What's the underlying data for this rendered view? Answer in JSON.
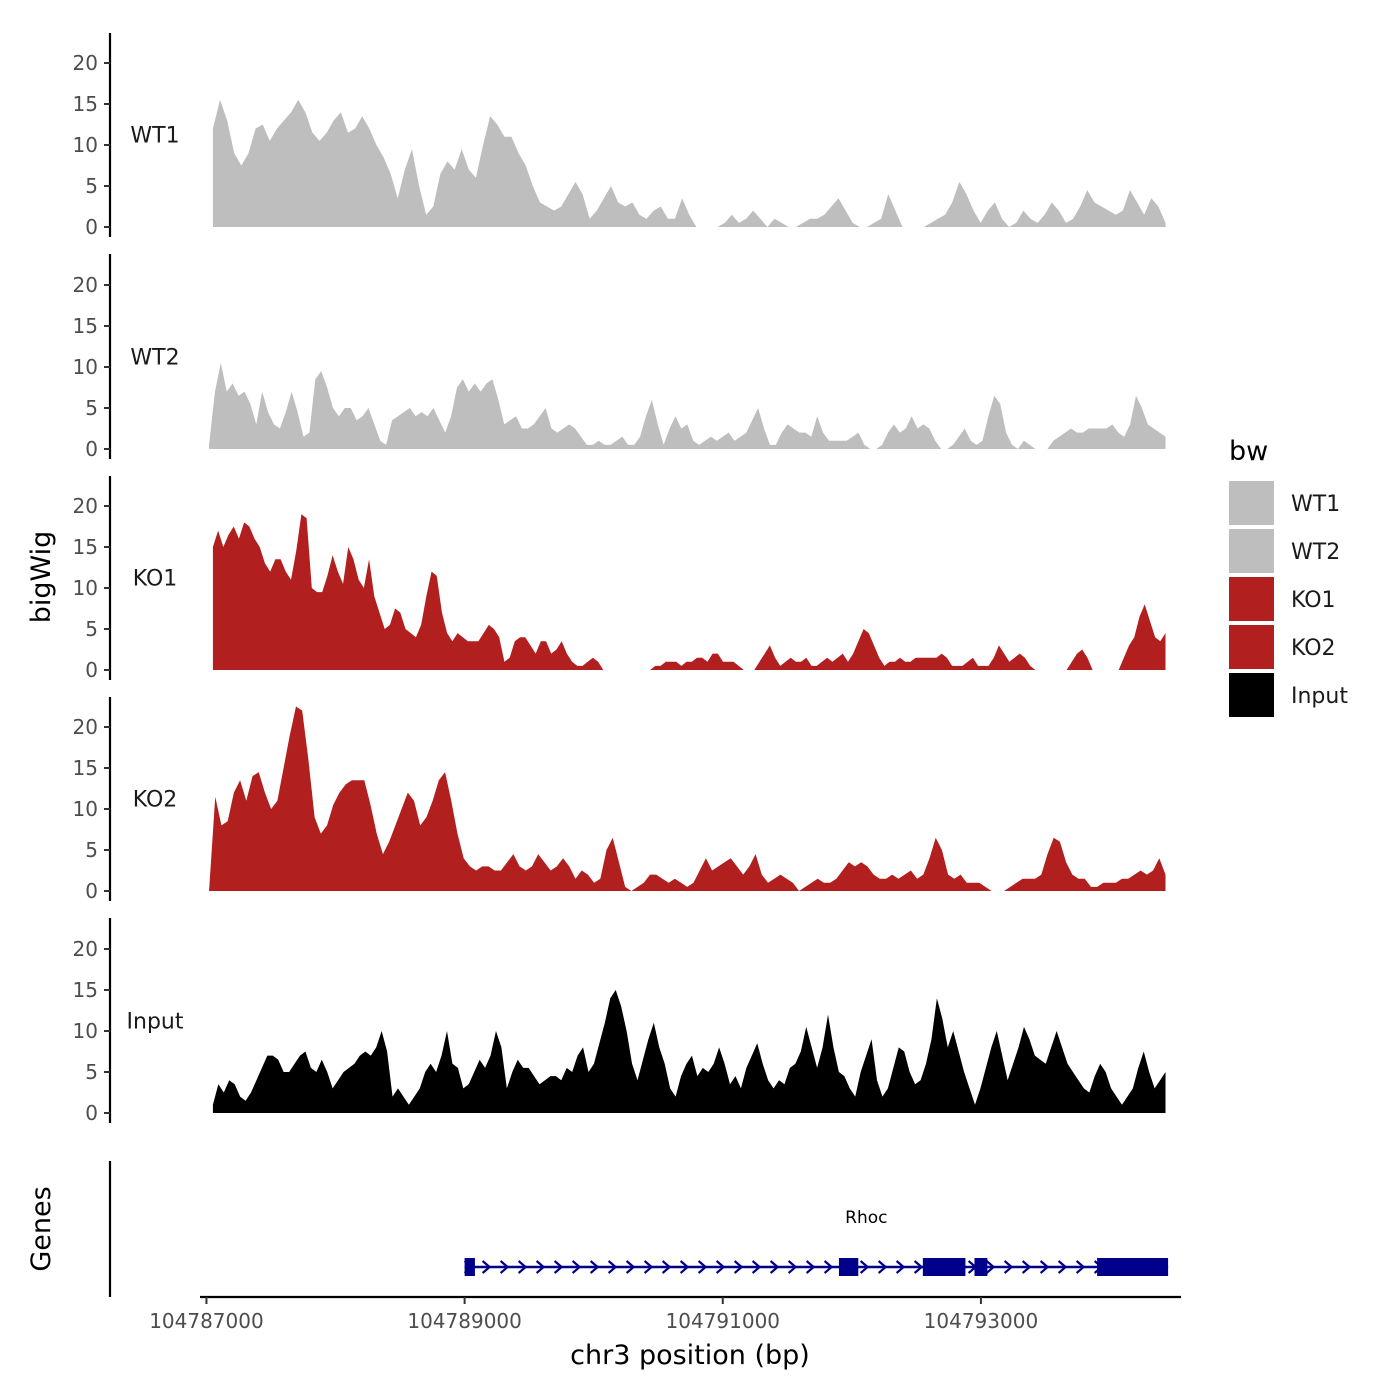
{
  "chart_data": {
    "type": "area",
    "xlabel": "chr3 position (bp)",
    "ylabel": "bigWig",
    "gene_track_label": "Genes",
    "xlim": [
      104786950,
      104794550
    ],
    "x_ticks": [
      104787000,
      104789000,
      104791000,
      104793000
    ],
    "x_tick_labels": [
      "104787000",
      "104789000",
      "104791000",
      "104793000"
    ],
    "ylim": [
      0,
      24
    ],
    "y_ticks": [
      0,
      5,
      10,
      15,
      20
    ],
    "y_tick_labels": [
      "0",
      "5",
      "10",
      "15",
      "20"
    ],
    "legend": {
      "title": "bw",
      "position": "right",
      "entries": [
        {
          "label": "WT1",
          "color": "#BEBEBE"
        },
        {
          "label": "WT2",
          "color": "#BEBEBE"
        },
        {
          "label": "KO1",
          "color": "#B21F1F"
        },
        {
          "label": "KO2",
          "color": "#B21F1F"
        },
        {
          "label": "Input",
          "color": "#000000"
        }
      ]
    },
    "tracks": [
      {
        "name": "WT1",
        "color": "#BEBEBE",
        "x_start": 104787050,
        "x_end": 104794430,
        "values": [
          12,
          15.5,
          13,
          9,
          7.5,
          9,
          12,
          12.5,
          10.5,
          12,
          13,
          14,
          15.5,
          14,
          11.5,
          10.5,
          11.5,
          13,
          14,
          11.5,
          12,
          13.5,
          12,
          10,
          8.5,
          6.5,
          3.5,
          7,
          9.5,
          5,
          1.5,
          2.5,
          6.5,
          8,
          7,
          9.5,
          7,
          6,
          10,
          13.5,
          12.5,
          11,
          11,
          9,
          7.5,
          5,
          3,
          2.5,
          2,
          2.5,
          4,
          5.5,
          4,
          1,
          2,
          3.5,
          5,
          3,
          2.5,
          3,
          1.5,
          1,
          2,
          2.5,
          1,
          1,
          3.5,
          1.5,
          0,
          0,
          0,
          0,
          0.5,
          1.5,
          0.5,
          1,
          2,
          1,
          0,
          1,
          0.5,
          0,
          0,
          0.5,
          1,
          1,
          1.5,
          2.5,
          3.5,
          2,
          0.5,
          0,
          0,
          0.5,
          1,
          4,
          2,
          0,
          0,
          0,
          0,
          0.5,
          1,
          1.5,
          3,
          5.5,
          4,
          2,
          0.5,
          2,
          3,
          1,
          0,
          0.5,
          2,
          1,
          0.5,
          1.5,
          3,
          2,
          0.5,
          1,
          2.5,
          4.5,
          3,
          2.5,
          2,
          1.5,
          2,
          4.5,
          3,
          1.5,
          3.5,
          2.5,
          0.5
        ]
      },
      {
        "name": "WT2",
        "color": "#BEBEBE",
        "x_start": 104787020,
        "x_end": 104794430,
        "values": [
          0.5,
          7,
          10.5,
          7,
          8,
          6.5,
          7,
          5.5,
          3,
          7,
          4.5,
          3,
          2.5,
          4.5,
          7,
          4.5,
          1.5,
          2,
          8.5,
          9.5,
          7.5,
          5,
          4,
          5,
          5,
          3.5,
          4,
          5,
          3,
          1,
          0.5,
          3.5,
          4,
          4.5,
          5,
          4,
          4.5,
          4,
          5,
          3.5,
          2,
          4,
          7.5,
          8.5,
          7,
          8,
          7,
          8,
          8.5,
          6,
          3,
          3.5,
          4,
          2.5,
          2.5,
          3,
          4,
          5,
          2.5,
          2,
          2.5,
          3,
          2.5,
          1.5,
          0.5,
          0.5,
          1,
          0.5,
          0.5,
          1,
          1.5,
          0.5,
          0.5,
          1.5,
          4,
          6,
          3,
          0.5,
          2.5,
          4,
          2.5,
          3,
          1,
          0.5,
          1,
          1.5,
          1,
          1.5,
          2,
          1,
          1.5,
          2,
          3.5,
          5,
          2.5,
          0.5,
          0.5,
          2,
          3,
          2.5,
          2,
          2,
          1.5,
          4,
          2,
          1,
          1,
          1,
          1,
          1.5,
          2,
          0.5,
          0,
          0,
          0.5,
          2,
          3,
          2,
          2.5,
          4,
          2.5,
          3,
          2.5,
          1,
          0,
          0,
          0.5,
          1.5,
          2.5,
          1,
          0.5,
          1,
          4,
          6.5,
          5.5,
          2,
          0.5,
          0,
          1,
          0.5,
          0,
          0,
          0,
          1,
          1.5,
          2,
          2.5,
          2,
          2,
          2.5,
          2.5,
          2.5,
          2.5,
          3,
          2,
          1.5,
          3,
          6.5,
          5,
          3,
          2.5,
          2,
          1.5
        ]
      },
      {
        "name": "KO1",
        "color": "#B21F1F",
        "x_start": 104787050,
        "x_end": 104794430,
        "values": [
          15,
          17,
          15,
          16.5,
          17.5,
          16,
          18,
          17.5,
          16,
          15,
          13,
          12,
          13.5,
          13.5,
          12,
          11,
          14.5,
          19,
          18.5,
          10,
          9.5,
          9.5,
          11.5,
          14,
          12,
          10.5,
          15,
          13.5,
          11,
          10,
          13.5,
          9,
          7,
          5,
          5.5,
          7.5,
          7,
          5,
          4.5,
          4,
          5.5,
          9,
          12,
          11.5,
          7,
          4.5,
          3.5,
          4.5,
          4,
          3.5,
          3.5,
          3.5,
          4.5,
          5.5,
          5,
          4,
          1,
          1.5,
          3.5,
          4,
          4,
          3,
          2,
          3.5,
          3.5,
          2,
          2.5,
          3.5,
          2,
          1,
          0.5,
          0.5,
          1,
          1.5,
          1,
          0,
          0,
          0,
          0,
          0,
          0,
          0,
          0,
          0,
          0,
          0.5,
          0.5,
          1,
          1,
          1,
          0.5,
          1,
          1,
          1.5,
          1.5,
          1,
          2,
          2,
          1,
          1,
          1,
          0.5,
          0,
          0,
          0,
          1,
          2,
          3,
          1.5,
          0.5,
          1,
          1.5,
          1,
          1,
          1.5,
          0.5,
          0.5,
          1,
          1.5,
          1,
          1.5,
          2,
          1,
          2,
          3.5,
          5,
          4.5,
          3,
          1.5,
          0.5,
          1,
          1,
          1.5,
          1,
          1,
          1.5,
          1.5,
          1.5,
          1.5,
          1.5,
          2,
          1.5,
          0.5,
          0.5,
          0.5,
          1,
          1.5,
          0.5,
          0.5,
          0.5,
          1.5,
          3,
          2,
          1,
          1.5,
          2,
          1.5,
          0.5,
          0,
          0,
          0,
          0,
          0,
          0,
          0,
          1,
          2,
          2.5,
          1.5,
          0,
          0,
          0,
          0,
          0,
          0,
          1.5,
          3,
          4,
          6.5,
          8,
          6,
          4,
          3.5,
          4.5
        ]
      },
      {
        "name": "KO2",
        "color": "#B21F1F",
        "x_start": 104787020,
        "x_end": 104794430,
        "values": [
          0,
          11.5,
          8,
          8.5,
          12,
          13.5,
          11,
          14,
          14.5,
          12,
          10,
          11,
          15,
          19,
          22.5,
          22,
          16,
          9,
          7,
          8,
          10.5,
          12,
          13,
          13.5,
          13.5,
          13.5,
          10.5,
          7,
          4.5,
          6,
          8,
          10,
          12,
          11,
          8,
          9,
          11,
          13.5,
          14.5,
          11,
          7,
          4,
          3,
          2.5,
          3,
          3,
          2.5,
          2.5,
          3.5,
          4.5,
          3,
          2.5,
          3,
          4.5,
          3.5,
          2.5,
          3,
          4,
          3,
          1.5,
          2.5,
          2,
          1,
          1.5,
          5,
          6.5,
          3.5,
          0.5,
          0,
          0.5,
          1,
          2,
          2,
          1.5,
          1,
          1.5,
          1,
          0.5,
          1,
          2.5,
          4,
          2.5,
          3,
          3.5,
          4,
          3,
          2,
          3,
          4.5,
          2,
          1,
          1.5,
          2,
          1.5,
          1,
          0,
          0.5,
          1,
          1.5,
          1,
          1,
          1.5,
          2.5,
          3.5,
          3,
          3.5,
          3,
          2,
          1.5,
          1.5,
          2,
          1.5,
          2,
          2.5,
          1.5,
          2,
          4,
          6.5,
          5,
          2,
          1.5,
          2,
          1,
          1,
          1,
          0.5,
          0,
          0,
          0,
          0.5,
          1,
          1.5,
          1.5,
          1.5,
          2,
          4.5,
          6.5,
          6,
          3.5,
          2,
          1.5,
          1.5,
          0.5,
          0.5,
          1,
          1,
          1,
          1.5,
          1.5,
          2,
          2.5,
          2,
          2.5,
          4,
          2
        ]
      },
      {
        "name": "Input",
        "color": "#000000",
        "x_start": 104787050,
        "x_end": 104794430,
        "values": [
          1,
          3.5,
          2.5,
          4,
          3.5,
          2,
          1.5,
          2.5,
          4,
          5.5,
          7,
          7,
          6.5,
          5,
          5,
          6,
          7,
          7.5,
          5.5,
          5,
          6.5,
          5,
          3,
          4,
          5,
          5.5,
          6,
          7,
          7.5,
          7,
          8,
          10,
          7.5,
          2,
          3,
          2,
          1,
          2,
          3,
          5,
          6,
          5,
          7,
          10,
          6,
          5.5,
          3,
          3.5,
          5,
          6.5,
          5.5,
          7,
          10,
          8,
          3,
          5,
          6.5,
          5.5,
          5.5,
          4.5,
          3.5,
          4,
          4.5,
          4.5,
          4,
          5.5,
          5,
          7,
          8,
          5,
          6,
          8.5,
          11,
          14,
          15,
          13,
          10,
          6,
          4,
          6.5,
          9,
          11,
          8,
          6,
          3,
          2,
          4.5,
          6,
          7,
          4.5,
          5.5,
          5,
          6,
          8,
          6,
          3.5,
          4.5,
          3,
          5.5,
          7,
          8.5,
          6,
          4,
          3,
          4,
          3.5,
          5.5,
          6,
          7.5,
          10.5,
          8,
          5.5,
          8,
          12,
          8,
          5,
          4.5,
          3,
          2,
          5,
          7,
          9,
          4,
          2,
          3,
          5.5,
          8,
          7.5,
          5,
          3.5,
          4,
          6,
          9,
          14,
          11.5,
          8,
          10,
          7.5,
          5,
          3,
          1,
          3,
          5.5,
          8,
          10,
          7,
          4,
          6,
          8,
          10.5,
          9,
          7,
          6.5,
          6,
          8,
          10,
          8,
          6,
          5,
          4,
          3,
          2.5,
          4.5,
          6,
          5,
          3,
          2,
          1,
          2,
          3,
          5.5,
          7.5,
          5,
          3,
          4,
          5
        ]
      }
    ],
    "gene": {
      "name": "Rhoc",
      "strand": "+",
      "start": 104789000,
      "end": 104794450,
      "color": "#00008B",
      "exons": [
        [
          104789000,
          104789080
        ],
        [
          104791900,
          104792050
        ],
        [
          104792550,
          104792880
        ],
        [
          104792950,
          104793050
        ],
        [
          104793900,
          104794450
        ]
      ]
    }
  }
}
